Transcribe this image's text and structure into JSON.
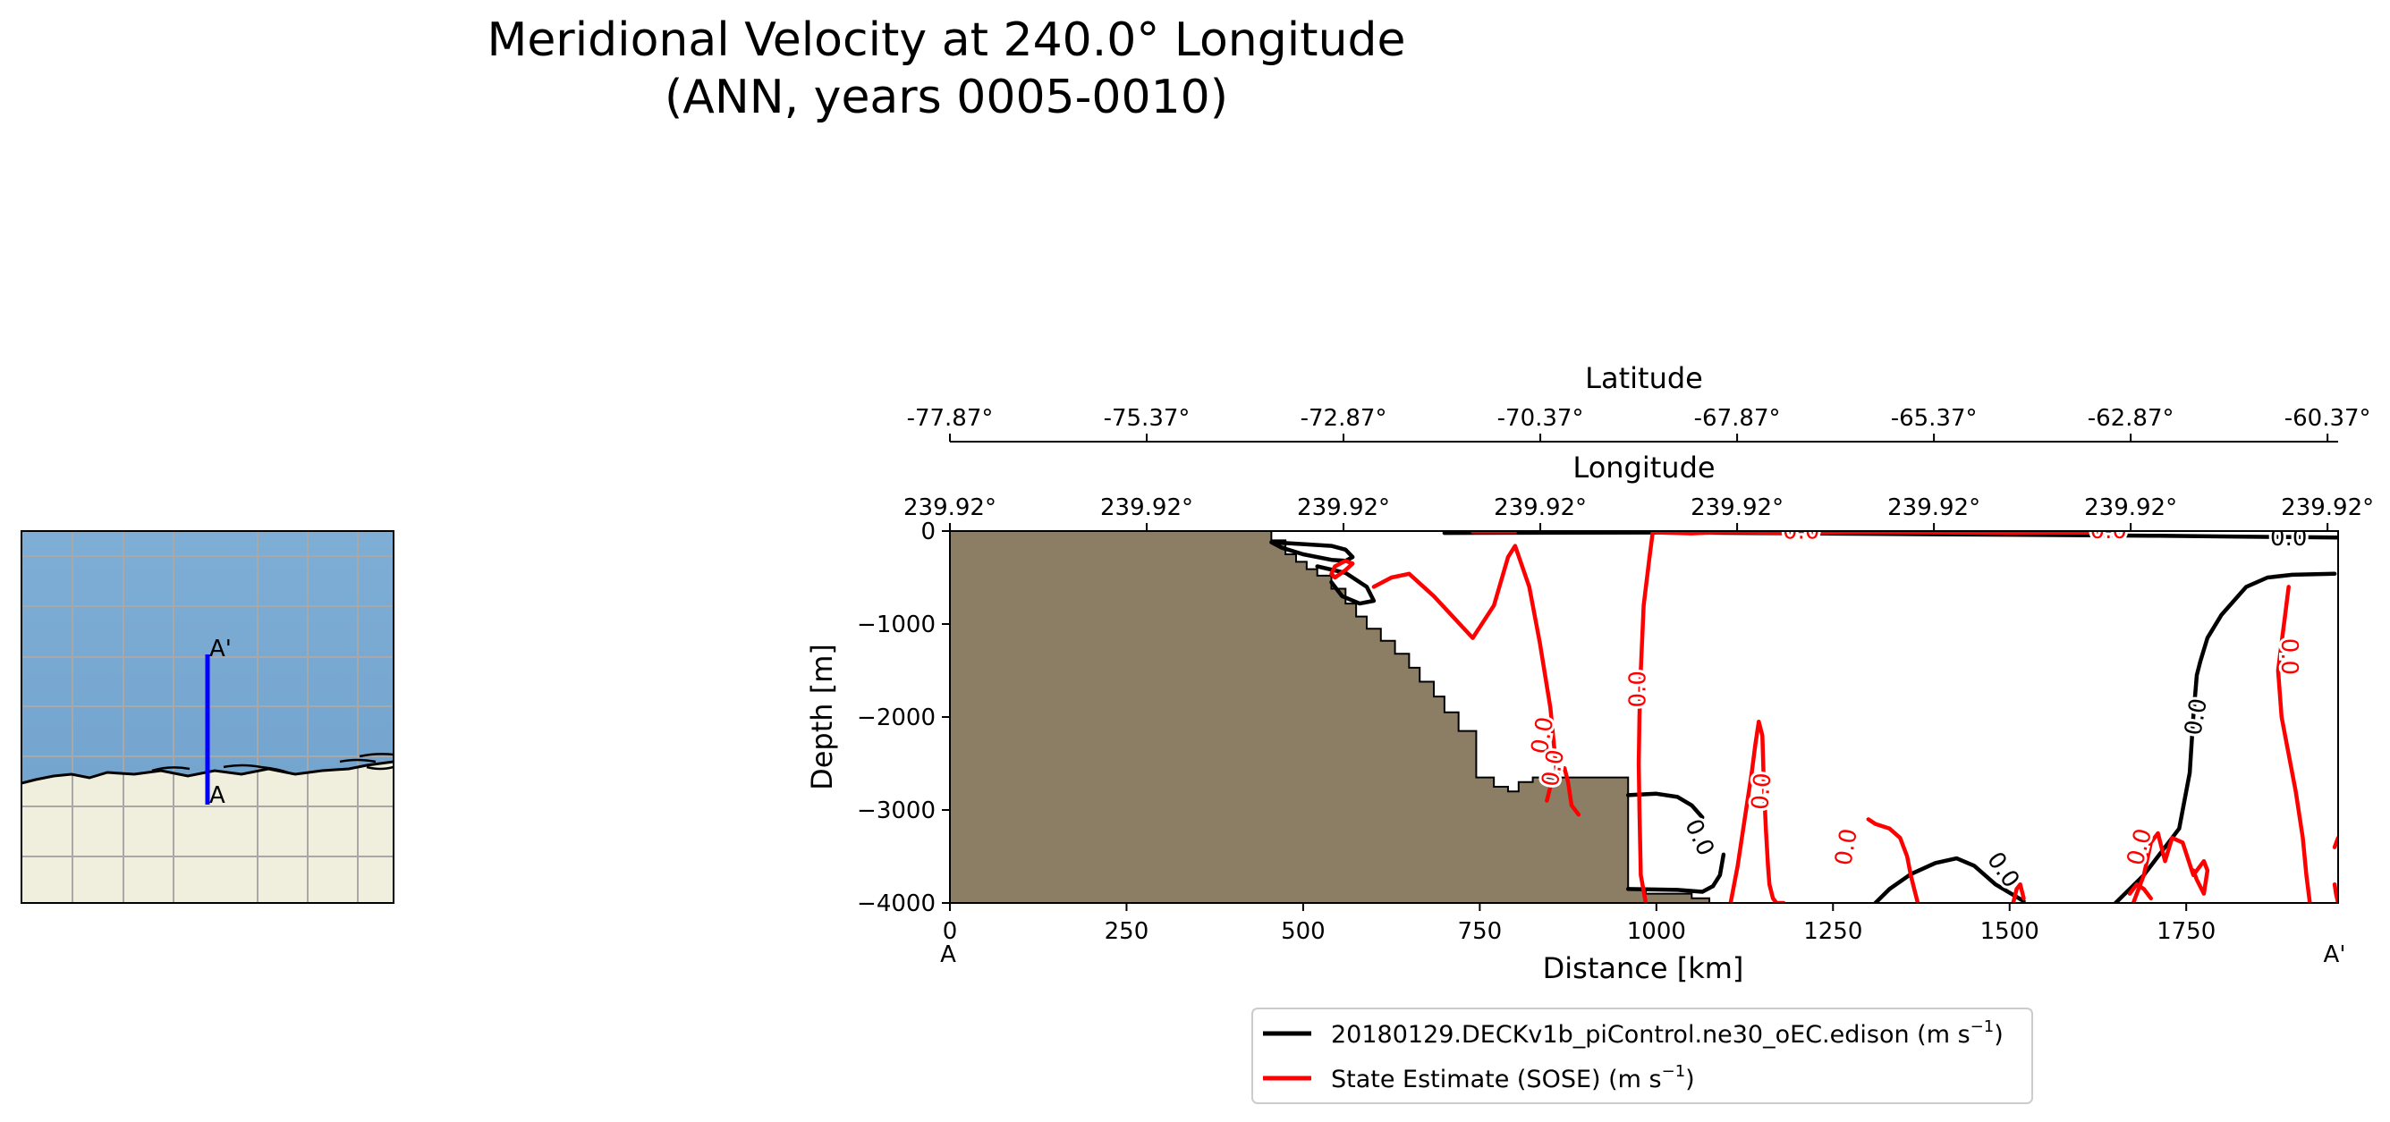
{
  "figure": {
    "title_line1": "Meridional Velocity at 240.0° Longitude",
    "title_line2": "(ANN, years 0005-0010)"
  },
  "colors": {
    "model": "#000000",
    "obs": "#ff0000",
    "land": "#8c7e64",
    "ocean": "#7aaad2",
    "inset_land": "#f0eedc",
    "inset_grid": "#a0a0a0",
    "transect": "#0000ff"
  },
  "inset_map": {
    "label_start": "A",
    "label_end": "A'"
  },
  "chart_data": {
    "type": "line",
    "subtype": "contour-section",
    "xlabel": "Distance [km]",
    "ylabel": "Depth [m]",
    "xlim": [
      0,
      1965
    ],
    "ylim": [
      -4000,
      0
    ],
    "x_ticks": [
      0,
      250,
      500,
      750,
      1000,
      1250,
      1500,
      1750
    ],
    "y_ticks": [
      0,
      -1000,
      -2000,
      -3000,
      -4000
    ],
    "x_tick_labels": [
      "0",
      "250",
      "500",
      "750",
      "1000",
      "1250",
      "1500",
      "1750"
    ],
    "y_tick_labels": [
      "0",
      "−1000",
      "−2000",
      "−3000",
      "−4000"
    ],
    "x_end_labels": {
      "start": "A",
      "end": "A'"
    },
    "secondary_axes": [
      {
        "label": "Longitude",
        "tick_positions_km": [
          0,
          278.57,
          557.14,
          835.71,
          1114.29,
          1392.86,
          1671.43,
          1950
        ],
        "tick_labels": [
          "239.92°",
          "239.92°",
          "239.92°",
          "239.92°",
          "239.92°",
          "239.92°",
          "239.92°",
          "239.92°"
        ]
      },
      {
        "label": "Latitude",
        "tick_positions_km": [
          0,
          278.57,
          557.14,
          835.71,
          1114.29,
          1392.86,
          1671.43,
          1950
        ],
        "tick_labels": [
          "-77.87°",
          "-75.37°",
          "-72.87°",
          "-70.37°",
          "-67.87°",
          "-65.37°",
          "-62.87°",
          "-60.37°"
        ]
      }
    ],
    "bathymetry": {
      "distance_km": [
        0,
        455,
        455,
        475,
        475,
        490,
        490,
        505,
        505,
        520,
        520,
        540,
        540,
        560,
        560,
        575,
        575,
        590,
        590,
        610,
        610,
        630,
        630,
        650,
        650,
        665,
        665,
        685,
        685,
        700,
        700,
        720,
        720,
        745,
        745,
        770,
        770,
        790,
        790,
        805,
        805,
        825,
        825,
        960,
        960,
        985,
        985,
        1050,
        1050,
        1075,
        1075,
        1965
      ],
      "depth_m": [
        0,
        0,
        -100,
        -100,
        -250,
        -250,
        -330,
        -330,
        -410,
        -410,
        -480,
        -480,
        -620,
        -620,
        -780,
        -780,
        -920,
        -920,
        -1050,
        -1050,
        -1180,
        -1180,
        -1320,
        -1320,
        -1470,
        -1470,
        -1620,
        -1620,
        -1780,
        -1780,
        -1950,
        -1950,
        -2150,
        -2150,
        -2650,
        -2650,
        -2750,
        -2750,
        -2800,
        -2800,
        -2700,
        -2700,
        -2650,
        -2650,
        -3850,
        -3850,
        -3900,
        -3900,
        -3950,
        -3950,
        -4000,
        -4000
      ]
    },
    "series": [
      {
        "name": "20180129.DECKv1b_piControl.ne30_oEC.edison (m s⁻¹)",
        "legend_main": "20180129.DECKv1b_piControl.ne30_oEC.edison (m s",
        "legend_sup": "−1",
        "legend_end": ")",
        "color": "#000000",
        "contour_level": 0.0,
        "contour_label": "0.0",
        "lines": [
          {
            "x": [
              700,
              1000,
              1300,
              1700,
              1965
            ],
            "y": [
              -20,
              -15,
              -30,
              -50,
              -70
            ]
          },
          {
            "x": [
              455,
              500,
              540,
              560,
              570,
              560,
              540,
              500,
              470,
              455
            ],
            "y": [
              -120,
              -140,
              -160,
              -200,
              -280,
              -320,
              -310,
              -250,
              -180,
              -120
            ]
          },
          {
            "x": [
              520,
              560,
              590,
              600,
              580,
              555,
              540
            ],
            "y": [
              -380,
              -450,
              -600,
              -750,
              -780,
              -700,
              -550
            ]
          },
          {
            "x": [
              960,
              1000,
              1030,
              1050,
              1065
            ],
            "y": [
              -2840,
              -2825,
              -2860,
              -2950,
              -3080
            ]
          },
          {
            "x": [
              960,
              1030,
              1065,
              1080,
              1090,
              1095
            ],
            "y": [
              -3850,
              -3860,
              -3880,
              -3820,
              -3700,
              -3480
            ]
          },
          {
            "x": [
              1310,
              1330,
              1360,
              1395,
              1425,
              1450,
              1480,
              1520
            ],
            "y": [
              -4000,
              -3850,
              -3690,
              -3570,
              -3520,
              -3600,
              -3800,
              -3980
            ]
          },
          {
            "x": [
              1650,
              1690,
              1740,
              1755,
              1760,
              1765,
              1770,
              1780,
              1800,
              1835,
              1865,
              1900,
              1960
            ],
            "y": [
              -4000,
              -3700,
              -3200,
              -2600,
              -2000,
              -1550,
              -1400,
              -1150,
              -900,
              -600,
              -500,
              -470,
              -460
            ]
          }
        ],
        "labels": [
          {
            "x": 1490,
            "y": -3650,
            "rotation": 55
          },
          {
            "x": 1765,
            "y": -2000,
            "rotation": -80
          },
          {
            "x": 1895,
            "y": -80,
            "rotation": 0
          },
          {
            "x": 1060,
            "y": -3300,
            "rotation": 65
          }
        ]
      },
      {
        "name": "State Estimate (SOSE) (m s⁻¹)",
        "legend_main": "State Estimate (SOSE) (m s",
        "legend_sup": "−1",
        "legend_end": ")",
        "color": "#ff0000",
        "contour_level": 0.0,
        "contour_label": "0.0",
        "lines": [
          {
            "x": [
              545,
              560,
              570,
              560,
              545,
              540,
              545
            ],
            "y": [
              -500,
              -420,
              -350,
              -320,
              -380,
              -460,
              -500
            ]
          },
          {
            "x": [
              600,
              625,
              650,
              685,
              740,
              770,
              790,
              800,
              820,
              835,
              850,
              855,
              860
            ],
            "y": [
              -600,
              -500,
              -460,
              -700,
              -1150,
              -800,
              -280,
              -160,
              -600,
              -1200,
              -1900,
              -2300,
              -2700
            ]
          },
          {
            "x": [
              740,
              800
            ],
            "y": [
              -5,
              -5
            ]
          },
          {
            "x": [
              845,
              850,
              860,
              870,
              875,
              880,
              890
            ],
            "y": [
              -2900,
              -2750,
              -2600,
              -2550,
              -2700,
              -2950,
              -3050
            ]
          },
          {
            "x": [
              995,
              990,
              982,
              978,
              976,
              975,
              976,
              978,
              985
            ],
            "y": [
              0,
              -300,
              -800,
              -1500,
              -2000,
              -2500,
              -3000,
              -3700,
              -4000
            ]
          },
          {
            "x": [
              1000,
              1050,
              1100,
              1200,
              1300,
              1500,
              1650
            ],
            "y": [
              -15,
              -25,
              -10,
              -25,
              -10,
              -20,
              -15
            ]
          },
          {
            "x": [
              1105,
              1115,
              1125,
              1135,
              1140,
              1145,
              1150,
              1152,
              1155,
              1158,
              1160,
              1165,
              1170,
              1180
            ],
            "y": [
              -4000,
              -3600,
              -3100,
              -2600,
              -2300,
              -2050,
              -2200,
              -2700,
              -3200,
              -3600,
              -3800,
              -3950,
              -4000,
              -4000
            ]
          },
          {
            "x": [
              1300,
              1310,
              1330,
              1345,
              1355,
              1360,
              1365,
              1370
            ],
            "y": [
              -3100,
              -3150,
              -3200,
              -3300,
              -3500,
              -3700,
              -3850,
              -4000
            ]
          },
          {
            "x": [
              1505,
              1510,
              1515,
              1520
            ],
            "y": [
              -4000,
              -3850,
              -3800,
              -3950
            ]
          },
          {
            "x": [
              1675,
              1690,
              1700,
              1710,
              1715,
              1720,
              1730,
              1745,
              1760,
              1775,
              1780,
              1775,
              1765,
              1760
            ],
            "y": [
              -4000,
              -3700,
              -3350,
              -3250,
              -3400,
              -3550,
              -3300,
              -3350,
              -3700,
              -3550,
              -3650,
              -3900,
              -3750,
              -3650
            ]
          },
          {
            "x": [
              1670,
              1680,
              1690,
              1700
            ],
            "y": [
              -3900,
              -3800,
              -3850,
              -3950
            ]
          },
          {
            "x": [
              1895,
              1890,
              1885,
              1880,
              1885,
              1895,
              1905,
              1915,
              1920,
              1925
            ],
            "y": [
              -600,
              -900,
              -1200,
              -1500,
              -2000,
              -2400,
              -2800,
              -3300,
              -3700,
              -4000
            ]
          },
          {
            "x": [
              1960,
              1962,
              1965
            ],
            "y": [
              -3800,
              -3900,
              -4000
            ]
          },
          {
            "x": [
              1960,
              1965
            ],
            "y": [
              -3400,
              -3300
            ]
          }
        ],
        "labels": [
          {
            "x": 840,
            "y": -2200,
            "rotation": -80
          },
          {
            "x": 975,
            "y": -1700,
            "rotation": -90
          },
          {
            "x": 855,
            "y": -2550,
            "rotation": -80
          },
          {
            "x": 1150,
            "y": -2800,
            "rotation": -85
          },
          {
            "x": 1270,
            "y": -3400,
            "rotation": -80
          },
          {
            "x": 1685,
            "y": -3400,
            "rotation": -75
          },
          {
            "x": 1895,
            "y": -1350,
            "rotation": 90
          },
          {
            "x": 1205,
            "y": -10,
            "rotation": 0
          },
          {
            "x": 1640,
            "y": -5,
            "rotation": 0
          }
        ]
      }
    ],
    "legend_position": "below center"
  }
}
